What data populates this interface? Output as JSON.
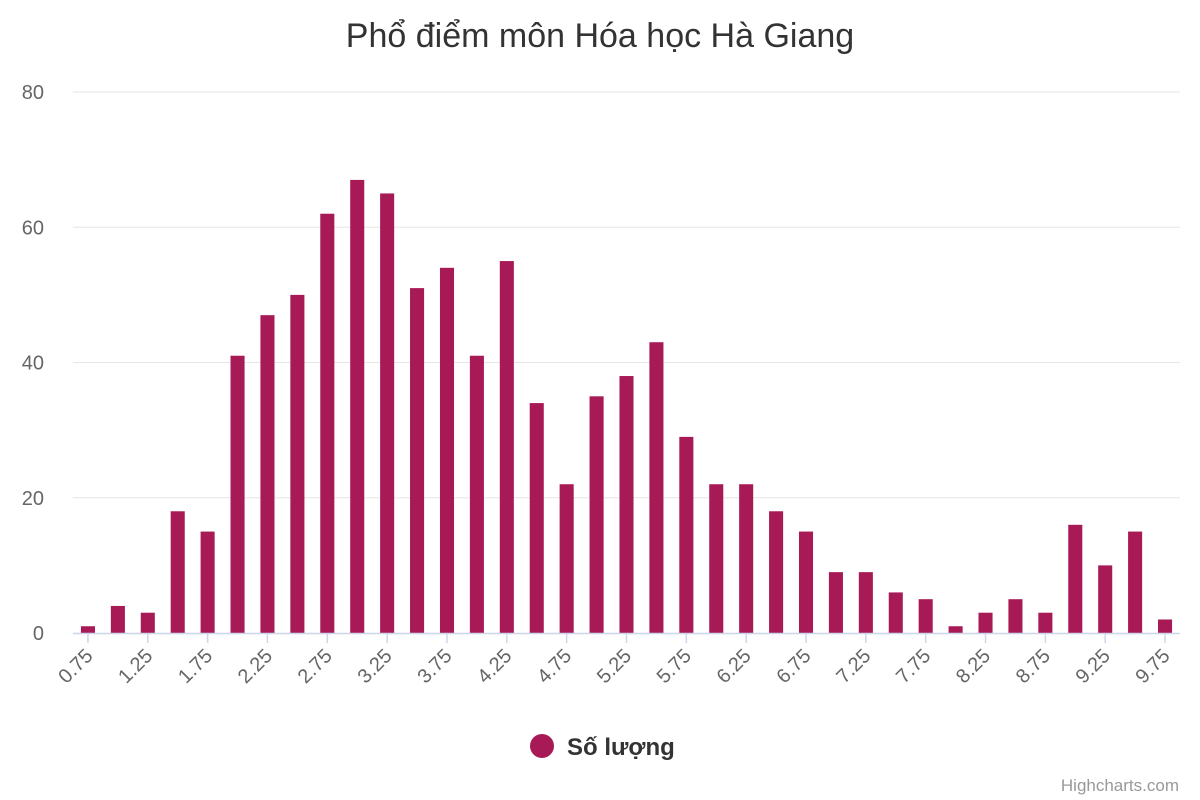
{
  "chart_data": {
    "type": "bar",
    "title": "Phổ điểm môn Hóa học Hà Giang",
    "xlabel": "",
    "ylabel": "",
    "ylim": [
      0,
      80
    ],
    "yticks": [
      0,
      20,
      40,
      60,
      80
    ],
    "grid": true,
    "legend_position": "bottom-center",
    "categories": [
      "0.75",
      "1",
      "1.25",
      "1.5",
      "1.75",
      "2",
      "2.25",
      "2.5",
      "2.75",
      "3",
      "3.25",
      "3.5",
      "3.75",
      "4",
      "4.25",
      "4.5",
      "4.75",
      "5",
      "5.25",
      "5.5",
      "5.75",
      "6",
      "6.25",
      "6.5",
      "6.75",
      "7",
      "7.25",
      "7.5",
      "7.75",
      "8",
      "8.25",
      "8.5",
      "8.75",
      "9",
      "9.25",
      "9.5",
      "9.75"
    ],
    "tick_labels": [
      "0.75",
      "1.25",
      "1.75",
      "2.25",
      "2.75",
      "3.25",
      "3.75",
      "4.25",
      "4.75",
      "5.25",
      "5.75",
      "6.25",
      "6.75",
      "7.25",
      "7.75",
      "8.25",
      "8.75",
      "9.25",
      "9.75"
    ],
    "series": [
      {
        "name": "Số lượng",
        "color": "#a81a56",
        "values": [
          1,
          4,
          3,
          18,
          15,
          41,
          47,
          50,
          62,
          67,
          65,
          51,
          54,
          41,
          55,
          34,
          22,
          35,
          38,
          43,
          29,
          22,
          22,
          18,
          15,
          9,
          9,
          6,
          5,
          1,
          3,
          5,
          3,
          16,
          10,
          15,
          2
        ]
      }
    ]
  },
  "credits": "Highcharts.com",
  "colors": {
    "grid": "#e6e6e6",
    "axis_line": "#ccd6eb",
    "bar": "#a81a56"
  }
}
